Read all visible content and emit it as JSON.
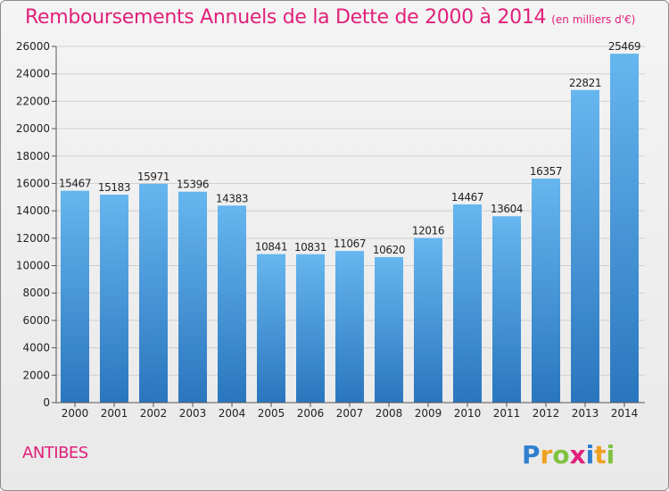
{
  "chart_data": {
    "type": "bar",
    "title": "Remboursements Annuels de la Dette de 2000 à 2014",
    "subtitle": "(en milliers d'€)",
    "categories": [
      "2000",
      "2001",
      "2002",
      "2003",
      "2004",
      "2005",
      "2006",
      "2007",
      "2008",
      "2009",
      "2010",
      "2011",
      "2012",
      "2013",
      "2014"
    ],
    "values": [
      15467,
      15183,
      15971,
      15396,
      14383,
      10841,
      10831,
      11067,
      10620,
      12016,
      14467,
      13604,
      16357,
      22821,
      25469
    ],
    "yticks": [
      0,
      2000,
      4000,
      6000,
      8000,
      10000,
      12000,
      14000,
      16000,
      18000,
      20000,
      22000,
      24000,
      26000
    ],
    "ylim": [
      0,
      26000
    ],
    "xlabel": "",
    "ylabel": "",
    "grid": true,
    "bar_color": "#3f8fd6",
    "bar_color_light": "#64b5ee",
    "bar_color_dark": "#2a75bd"
  },
  "footer": {
    "city": "ANTIBES",
    "brand": "Proxiti"
  },
  "colors": {
    "title": "#e0207a",
    "grid": "#cfcfcf"
  }
}
